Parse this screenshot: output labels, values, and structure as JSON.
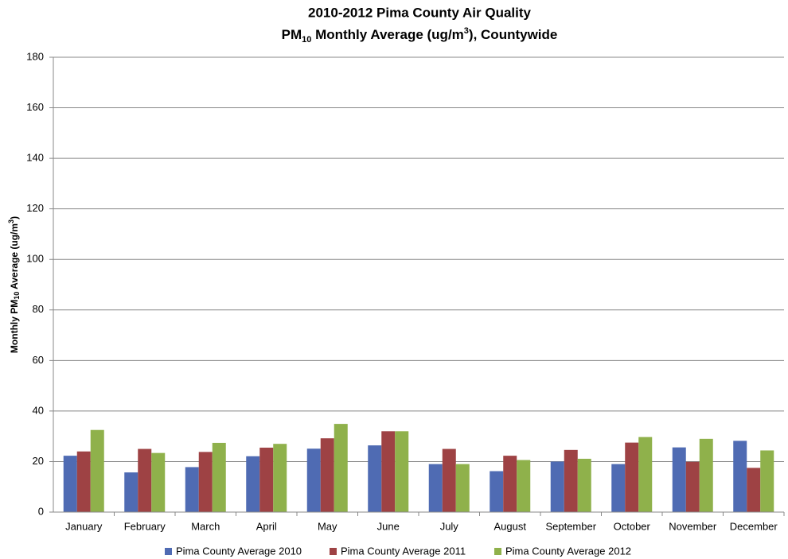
{
  "chart_data": {
    "type": "bar",
    "title": [
      "2010-2012 Pima County Air Quality",
      [
        "PM",
        "10",
        " Monthly Average (ug/m",
        "3",
        "), Countywide"
      ]
    ],
    "y_label": [
      "Monthly PM",
      "10",
      " Average (ug/m",
      "3",
      ")"
    ],
    "categories": [
      "January",
      "February",
      "March",
      "April",
      "May",
      "June",
      "July",
      "August",
      "September",
      "October",
      "November",
      "December"
    ],
    "series": [
      {
        "name": "Pima County Average 2010",
        "color": "#4f6bb3",
        "values": [
          22.3,
          15.7,
          17.8,
          22.1,
          25.1,
          26.4,
          19,
          16.2,
          20,
          19,
          25.6,
          28.2
        ]
      },
      {
        "name": "Pima County Average 2011",
        "color": "#9e4244",
        "values": [
          24,
          25,
          23.8,
          25.5,
          29.2,
          32,
          25,
          22.3,
          24.6,
          27.5,
          19.9,
          17.5
        ]
      },
      {
        "name": "Pima County Average 2012",
        "color": "#8fb14b",
        "values": [
          32.5,
          23.4,
          27.4,
          27,
          34.9,
          32,
          19,
          20.6,
          21.1,
          29.7,
          29,
          24.4
        ]
      }
    ],
    "ylim": [
      0,
      180
    ],
    "yticks": [
      0,
      20,
      40,
      60,
      80,
      100,
      120,
      140,
      160,
      180
    ],
    "grid": true,
    "legend": "bottom"
  }
}
